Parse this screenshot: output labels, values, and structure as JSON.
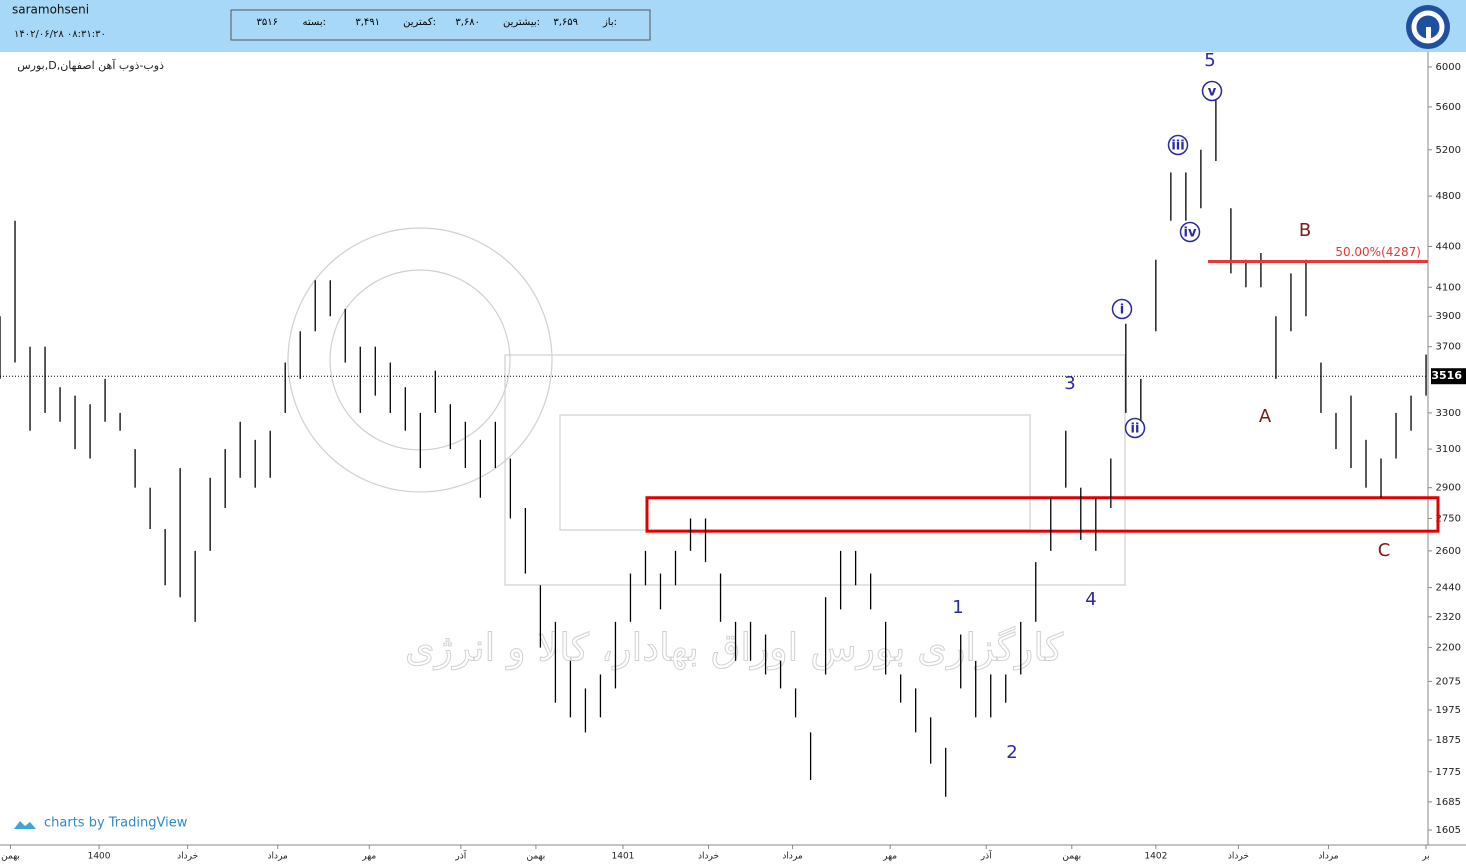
{
  "header": {
    "user": "saramohseni",
    "datetime": "۱۴۰۲/۰۶/۲۸ ۰۸:۳۱:۳۰",
    "info": [
      {
        "label": "باز:",
        "value": "۳,۶۵۹"
      },
      {
        "label": "بیشترین:",
        "value": "۳,۶۸۰"
      },
      {
        "label": "کمترین:",
        "value": "۳,۴۹۱"
      },
      {
        "label": "بسته:",
        "value": "۳۵۱۶"
      }
    ]
  },
  "chart_data": {
    "type": "ohlc",
    "title": "بورس,D,ذوب-ذوب آهن اصفهان",
    "watermark": "کارگزاری بورس اوراق بهادار، کالا و انرژی",
    "credit": "charts by TradingView",
    "color": "#000000",
    "log_scale": true,
    "x": [
      0,
      1,
      2,
      3,
      4,
      5,
      6,
      7,
      8,
      9,
      10,
      11,
      12,
      13,
      14,
      15,
      16,
      17,
      18,
      19,
      20,
      21,
      22,
      23,
      24,
      25,
      26,
      27,
      28,
      29,
      30,
      31,
      32,
      33,
      34,
      35,
      36,
      37,
      38,
      39,
      40,
      41,
      42,
      43,
      44,
      45,
      46,
      47,
      48,
      49,
      50,
      51,
      52,
      53,
      54,
      55,
      56,
      57,
      58,
      59,
      60,
      61,
      62,
      63,
      64,
      65,
      66,
      67,
      68,
      69,
      70,
      71,
      72,
      73,
      74,
      75,
      76,
      77,
      78,
      79,
      80,
      81,
      82,
      83,
      84,
      85,
      86,
      87,
      88,
      89,
      90,
      91,
      92,
      93,
      94,
      95
    ],
    "high": [
      3900,
      4600,
      3700,
      3700,
      3450,
      3400,
      3350,
      3500,
      3300,
      3100,
      2900,
      2700,
      3000,
      2600,
      2950,
      3100,
      3250,
      3150,
      3200,
      3600,
      3800,
      4150,
      4150,
      3950,
      3700,
      3700,
      3600,
      3450,
      3300,
      3550,
      3350,
      3250,
      3150,
      3250,
      3050,
      2800,
      2450,
      2300,
      2150,
      2050,
      2100,
      2300,
      2500,
      2600,
      2500,
      2600,
      2750,
      2750,
      2500,
      2300,
      2300,
      2250,
      2150,
      2050,
      1900,
      2400,
      2600,
      2600,
      2500,
      2300,
      2100,
      2050,
      1950,
      1850,
      2250,
      2150,
      2100,
      2100,
      2300,
      2550,
      2850,
      3200,
      2900,
      2850,
      3050,
      3850,
      3500,
      4300,
      5000,
      5000,
      5200,
      5700,
      4700,
      4300,
      4350,
      3900,
      4200,
      4300,
      3600,
      3300,
      3400,
      3150,
      3050,
      3300,
      3400,
      3650
    ],
    "low": [
      3500,
      3600,
      3200,
      3300,
      3250,
      3100,
      3050,
      3250,
      3200,
      2900,
      2700,
      2450,
      2400,
      2300,
      2600,
      2800,
      2950,
      2900,
      2950,
      3300,
      3500,
      3800,
      3900,
      3600,
      3300,
      3400,
      3300,
      3200,
      3000,
      3300,
      3100,
      3000,
      2850,
      3000,
      2750,
      2500,
      2200,
      2000,
      1950,
      1900,
      1950,
      2050,
      2300,
      2450,
      2350,
      2450,
      2600,
      2550,
      2300,
      2150,
      2150,
      2100,
      2050,
      1950,
      1750,
      2100,
      2350,
      2450,
      2350,
      2100,
      2000,
      1900,
      1800,
      1700,
      2050,
      1950,
      1950,
      2000,
      2100,
      2300,
      2600,
      2900,
      2650,
      2600,
      2800,
      3300,
      3200,
      3800,
      4600,
      4600,
      4700,
      5100,
      4200,
      4100,
      4100,
      3500,
      3800,
      3900,
      3300,
      3100,
      3000,
      2900,
      2850,
      3050,
      3200,
      3400
    ],
    "xlim": [
      0,
      95.13
    ],
    "xticks": [
      {
        "value": 0.7,
        "label": "بهمن"
      },
      {
        "value": 6.6,
        "label": "1400"
      },
      {
        "value": 12.5,
        "label": "خرداد"
      },
      {
        "value": 18.5,
        "label": "مرداد"
      },
      {
        "value": 24.6,
        "label": "مهر"
      },
      {
        "value": 30.7,
        "label": "آذر"
      },
      {
        "value": 35.7,
        "label": "بهمن"
      },
      {
        "value": 41.5,
        "label": "1401"
      },
      {
        "value": 47.2,
        "label": "خرداد"
      },
      {
        "value": 52.8,
        "label": "مرداد"
      },
      {
        "value": 59.3,
        "label": "مهر"
      },
      {
        "value": 65.7,
        "label": "آذر"
      },
      {
        "value": 71.4,
        "label": "بهمن"
      },
      {
        "value": 77,
        "label": "1402"
      },
      {
        "value": 82.5,
        "label": "خرداد"
      },
      {
        "value": 88.5,
        "label": "مرداد"
      },
      {
        "value": 95,
        "label": "بر"
      }
    ],
    "ylim": [
      1564,
      6157
    ],
    "yticks": [
      6000,
      5600,
      5200,
      4800,
      4400,
      4100,
      3900,
      3700,
      3300,
      3100,
      2900,
      2750,
      2600,
      2440,
      2320,
      2200,
      2075,
      1975,
      1875,
      1775,
      1685,
      1605
    ],
    "last_price": 3516,
    "fib": {
      "value": 4287,
      "label": "50.00%(4287)",
      "color": "#e53935"
    },
    "zone": {
      "low": 2690,
      "high": 2850,
      "color": "#e00000"
    },
    "annotations": [
      {
        "text": "5",
        "color": "#2a2aa0"
      },
      {
        "text": "v",
        "color": "#2a2aa0",
        "circled": true
      },
      {
        "text": "iii",
        "color": "#2a2aa0",
        "circled": true
      },
      {
        "text": "iv",
        "color": "#2a2aa0",
        "circled": true
      },
      {
        "text": "i",
        "color": "#2a2aa0",
        "circled": true
      },
      {
        "text": "ii",
        "color": "#2a2aa0",
        "circled": true
      },
      {
        "text": "3",
        "color": "#2a2aa0"
      },
      {
        "text": "4",
        "color": "#2a2aa0"
      },
      {
        "text": "1",
        "color": "#2a2aa0"
      },
      {
        "text": "2",
        "color": "#2a2aa0"
      },
      {
        "text": "B",
        "color": "#7a1a1a"
      },
      {
        "text": "A",
        "color": "#7a1a1a"
      },
      {
        "text": "C",
        "color": "#7a1a1a"
      }
    ]
  }
}
